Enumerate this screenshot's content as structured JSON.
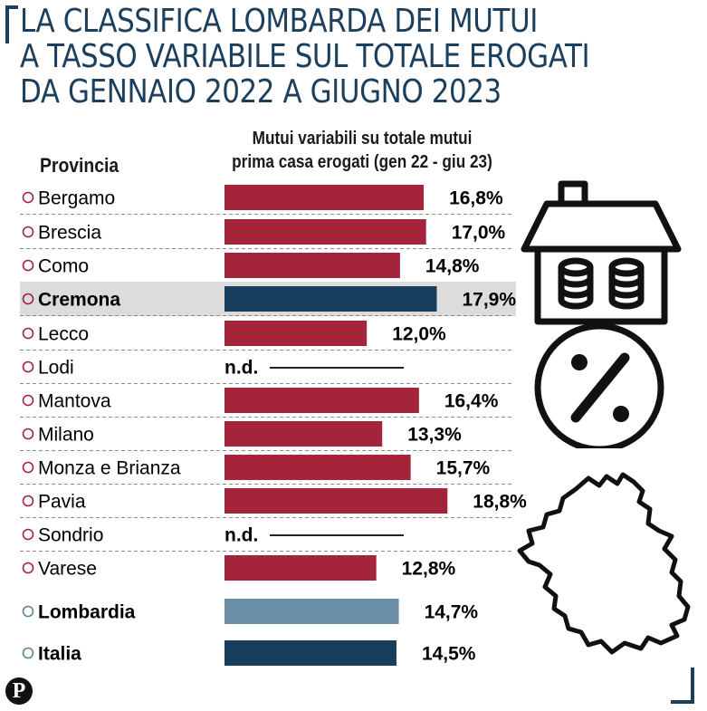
{
  "title_lines": [
    "LA CLASSIFICA LOMBARDA DEI MUTUI",
    "A TASSO VARIABILE SUL TOTALE EROGATI",
    "DA GENNAIO 2022 A GIUGNO 2023"
  ],
  "column_headers": {
    "provincia": "Provincia",
    "metric_line1": "Mutui variabili su totale mutui",
    "metric_line2": "prima casa erogati (gen 22 - giu 23)"
  },
  "logo_letter": "P",
  "colors": {
    "title": "#1b3f5c",
    "province_bar": "#a3243b",
    "highlight_bar": "#173e5c",
    "lombardia_bar": "#6a8ea5",
    "italia_bar": "#173e5c",
    "province_dot": "#a3243b",
    "total_dot": "#5b8299"
  },
  "chart_data": {
    "type": "bar",
    "orientation": "horizontal",
    "unit": "%",
    "xlim": [
      0,
      21
    ],
    "rows": [
      {
        "label": "Bergamo",
        "value": 16.8,
        "display": "16,8%",
        "group": "province"
      },
      {
        "label": "Brescia",
        "value": 17.0,
        "display": "17,0%",
        "group": "province"
      },
      {
        "label": "Como",
        "value": 14.8,
        "display": "14,8%",
        "group": "province"
      },
      {
        "label": "Cremona",
        "value": 17.9,
        "display": "17,9%",
        "group": "highlight"
      },
      {
        "label": "Lecco",
        "value": 12.0,
        "display": "12,0%",
        "group": "province"
      },
      {
        "label": "Lodi",
        "value": null,
        "display": "n.d.",
        "group": "province"
      },
      {
        "label": "Mantova",
        "value": 16.4,
        "display": "16,4%",
        "group": "province"
      },
      {
        "label": "Milano",
        "value": 13.3,
        "display": "13,3%",
        "group": "province"
      },
      {
        "label": "Monza e Brianza",
        "value": 15.7,
        "display": "15,7%",
        "group": "province"
      },
      {
        "label": "Pavia",
        "value": 18.8,
        "display": "18,8%",
        "group": "province"
      },
      {
        "label": "Sondrio",
        "value": null,
        "display": "n.d.",
        "group": "province"
      },
      {
        "label": "Varese",
        "value": 12.8,
        "display": "12,8%",
        "group": "province"
      },
      {
        "label": "Lombardia",
        "value": 14.7,
        "display": "14,7%",
        "group": "lombardia"
      },
      {
        "label": "Italia",
        "value": 14.5,
        "display": "14,5%",
        "group": "italia"
      }
    ]
  }
}
